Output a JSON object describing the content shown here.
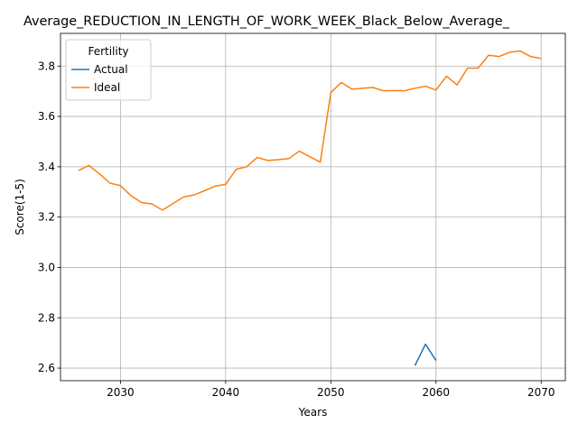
{
  "chart_data": {
    "type": "line",
    "title": "Average_REDUCTION_IN_LENGTH_OF_WORK_WEEK_Black_Below_Average_",
    "xlabel": "Years",
    "ylabel": "Score(1-5)",
    "xlim": [
      2024.3,
      2072.3
    ],
    "ylim": [
      2.55,
      3.93
    ],
    "xticks": [
      2030,
      2040,
      2050,
      2060,
      2070
    ],
    "yticks": [
      2.6,
      2.8,
      3.0,
      3.2,
      3.4,
      3.6,
      3.8
    ],
    "grid": true,
    "legend": {
      "title": "Fertility",
      "position": "top-left"
    },
    "series": [
      {
        "name": "Actual",
        "color": "#1f77b4",
        "x": [
          2058,
          2059,
          2060
        ],
        "y": [
          2.61,
          2.695,
          2.63
        ]
      },
      {
        "name": "Ideal",
        "color": "#ff7f0e",
        "x": [
          2026,
          2027,
          2028,
          2029,
          2030,
          2031,
          2032,
          2033,
          2034,
          2035,
          2036,
          2037,
          2038,
          2039,
          2040,
          2041,
          2042,
          2043,
          2044,
          2045,
          2046,
          2047,
          2048,
          2049,
          2050,
          2051,
          2052,
          2053,
          2054,
          2055,
          2056,
          2057,
          2058,
          2059,
          2060,
          2061,
          2062,
          2063,
          2064,
          2065,
          2066,
          2067,
          2068,
          2069,
          2070
        ],
        "y": [
          3.385,
          3.405,
          3.372,
          3.335,
          3.325,
          3.285,
          3.258,
          3.252,
          3.228,
          3.254,
          3.28,
          3.288,
          3.305,
          3.323,
          3.33,
          3.39,
          3.4,
          3.437,
          3.425,
          3.428,
          3.432,
          3.462,
          3.44,
          3.418,
          3.695,
          3.735,
          3.708,
          3.712,
          3.715,
          3.702,
          3.703,
          3.702,
          3.712,
          3.72,
          3.705,
          3.76,
          3.725,
          3.792,
          3.792,
          3.843,
          3.838,
          3.855,
          3.86,
          3.838,
          3.83
        ]
      }
    ]
  }
}
